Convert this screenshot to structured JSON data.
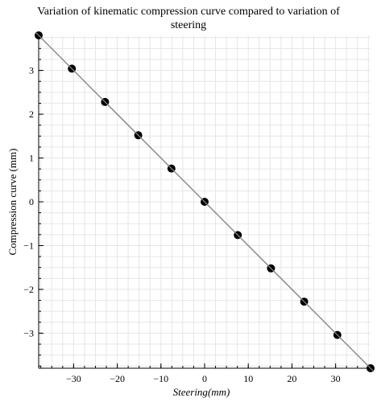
{
  "chart_data": {
    "type": "scatter",
    "title_line1": "Variation of kinematic compression curve compared to variation of",
    "title_line2": "steering",
    "xlabel_main": "Steering",
    "xlabel_unit": "(mm)",
    "ylabel": "Compression curve (mm)",
    "xlim": [
      -38,
      38
    ],
    "ylim": [
      -3.8,
      3.8
    ],
    "x_ticks": [
      -30,
      -20,
      -10,
      0,
      10,
      20,
      30
    ],
    "x_tick_labels": [
      "−30",
      "−20",
      "−10",
      "0",
      "10",
      "20",
      "30"
    ],
    "y_ticks": [
      -3,
      -2,
      -1,
      0,
      1,
      2,
      3
    ],
    "y_tick_labels": [
      "−3",
      "−2",
      "−1",
      "0",
      "1",
      "2",
      "3"
    ],
    "grid": true,
    "series": [
      {
        "line": true,
        "x": [
          -38,
          -30.4,
          -22.8,
          -15.2,
          -7.6,
          0,
          7.6,
          15.2,
          22.8,
          30.4,
          38
        ],
        "y": [
          3.8,
          3.04,
          2.28,
          1.52,
          0.76,
          0,
          -0.76,
          -1.52,
          -2.28,
          -3.04,
          -3.8
        ]
      }
    ],
    "colors": {
      "line": "#8c8c8c",
      "marker": "#000000",
      "grid": "#e6e6e6",
      "axis": "#000000"
    }
  }
}
